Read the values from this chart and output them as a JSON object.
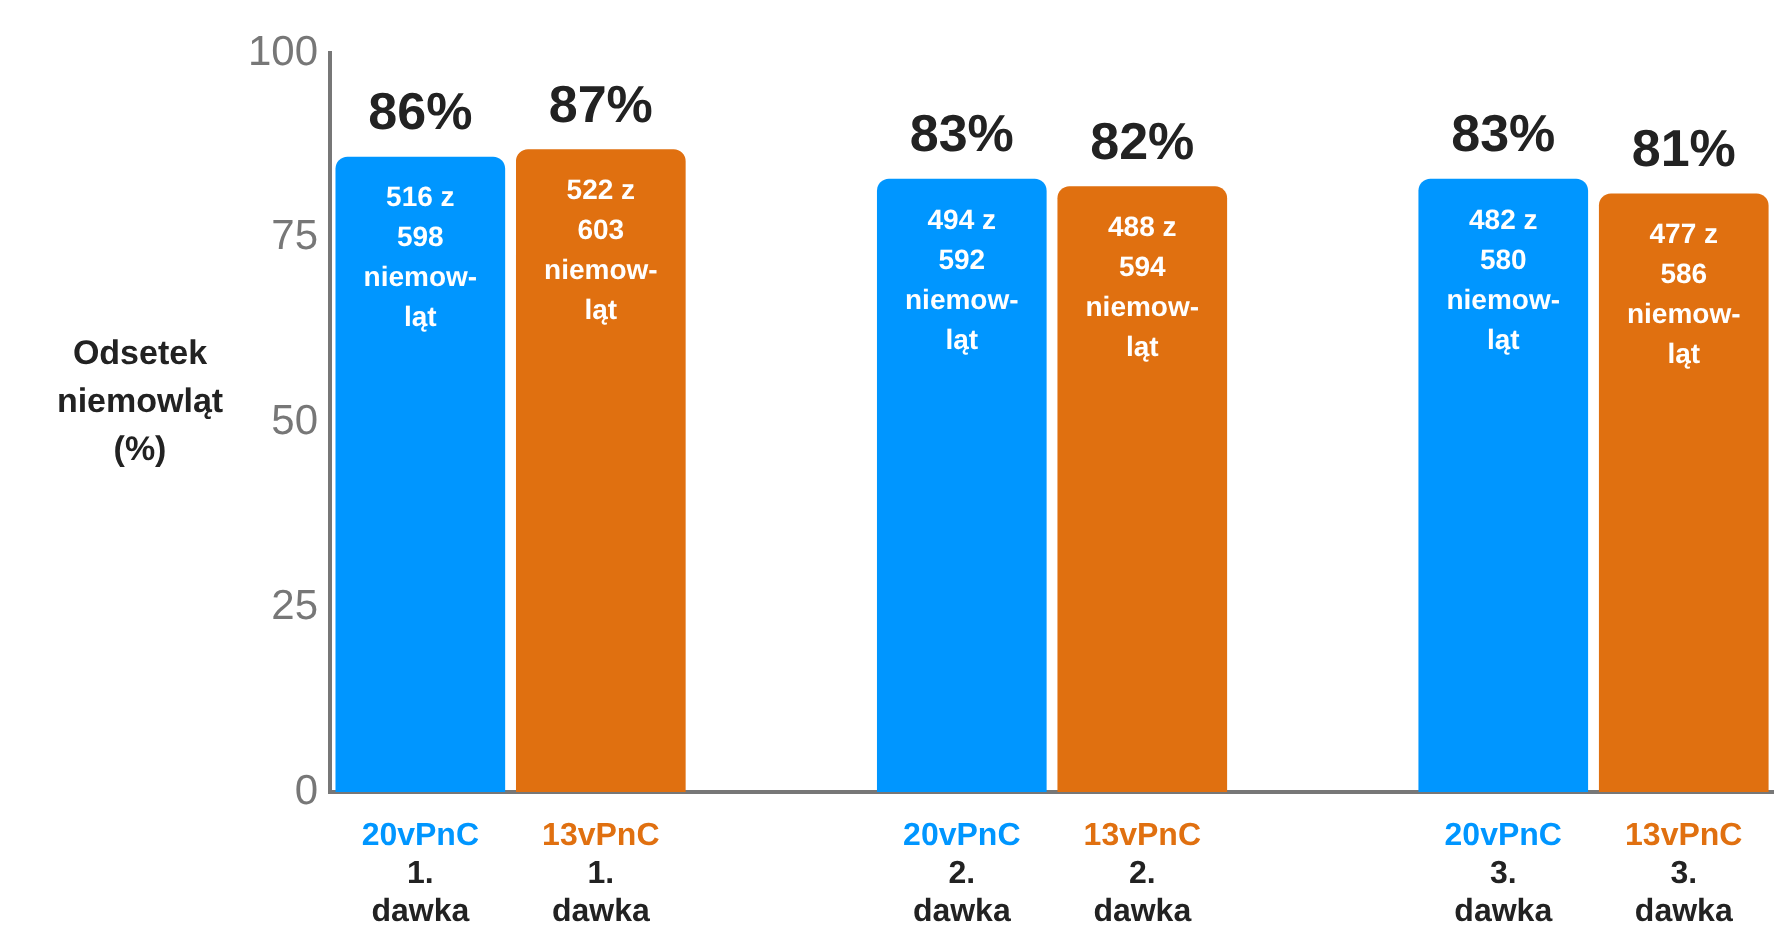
{
  "chart_data": {
    "type": "bar",
    "ylabel": "Odsetek niemowląt (%)",
    "categories": [
      "20vPnC\n1.\ndawka",
      "13vPnC\n1.\ndawka",
      null,
      "20vPnC\n2.\ndawka",
      "13vPnC\n2.\ndawka",
      null,
      "20vPnC\n3.\ndawka",
      "13vPnC\n3.\ndawka"
    ],
    "values": [
      86,
      87,
      null,
      83,
      82,
      null,
      83,
      81
    ],
    "colors": [
      "#0096ff",
      "#e07010",
      "#ffffff",
      "#0096ff",
      "#e07010",
      "#ffffff",
      "#0096ff",
      "#e07010"
    ],
    "value_labels": [
      "86%",
      "87%",
      null,
      "83%",
      "82%",
      null,
      "83%",
      "81%"
    ],
    "annotations": [
      {
        "text": "516 z\n598\nniemow-\nląt",
        "x": "20vPnC\n1.\ndawka",
        "y": 86
      },
      {
        "text": "522 z\n603\nniemow-\nląt",
        "x": "13vPnC\n1.\ndawka",
        "y": 87
      },
      {
        "text": "494 z\n592\nniemow-\nląt",
        "x": "20vPnC\n2.\ndawka",
        "y": 83
      },
      {
        "text": "488 z\n594\nniemow-\nląt",
        "x": "13vPnC\n2.\ndawka",
        "y": 82
      },
      {
        "text": "482 z\n580\nniemow-\nląt",
        "x": "20vPnC\n3.\ndawka",
        "y": 83
      },
      {
        "text": "477 z\n586\nniemow-\nląt",
        "x": "13vPnC\n3.\ndawka",
        "y": 81
      }
    ],
    "ylim": [
      0,
      100
    ],
    "yticks": [
      0,
      25,
      50,
      75,
      100
    ],
    "grid": false,
    "legend": false
  }
}
